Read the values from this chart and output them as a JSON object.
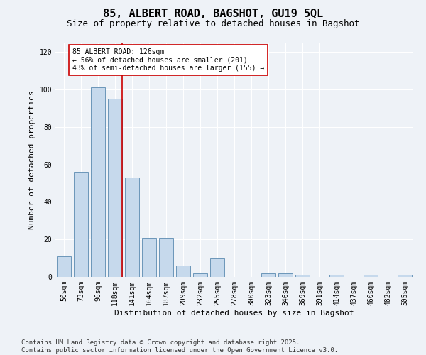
{
  "title": "85, ALBERT ROAD, BAGSHOT, GU19 5QL",
  "subtitle": "Size of property relative to detached houses in Bagshot",
  "xlabel": "Distribution of detached houses by size in Bagshot",
  "ylabel": "Number of detached properties",
  "categories": [
    "50sqm",
    "73sqm",
    "96sqm",
    "118sqm",
    "141sqm",
    "164sqm",
    "187sqm",
    "209sqm",
    "232sqm",
    "255sqm",
    "278sqm",
    "300sqm",
    "323sqm",
    "346sqm",
    "369sqm",
    "391sqm",
    "414sqm",
    "437sqm",
    "460sqm",
    "482sqm",
    "505sqm"
  ],
  "values": [
    11,
    56,
    101,
    95,
    53,
    21,
    21,
    6,
    2,
    10,
    0,
    0,
    2,
    2,
    1,
    0,
    1,
    0,
    1,
    0,
    1
  ],
  "bar_color": "#c6d9ec",
  "bar_edge_color": "#5a8ab0",
  "annotation_text": "85 ALBERT ROAD: 126sqm\n← 56% of detached houses are smaller (201)\n43% of semi-detached houses are larger (155) →",
  "annotation_box_color": "#ffffff",
  "annotation_box_edge_color": "#cc0000",
  "vline_color": "#cc0000",
  "vline_x_index": 3,
  "ylim": [
    0,
    125
  ],
  "yticks": [
    0,
    20,
    40,
    60,
    80,
    100,
    120
  ],
  "footer_text": "Contains HM Land Registry data © Crown copyright and database right 2025.\nContains public sector information licensed under the Open Government Licence v3.0.",
  "background_color": "#eef2f7",
  "grid_color": "#ffffff",
  "title_fontsize": 11,
  "subtitle_fontsize": 9,
  "axis_label_fontsize": 8,
  "tick_fontsize": 7,
  "annotation_fontsize": 7,
  "footer_fontsize": 6.5
}
